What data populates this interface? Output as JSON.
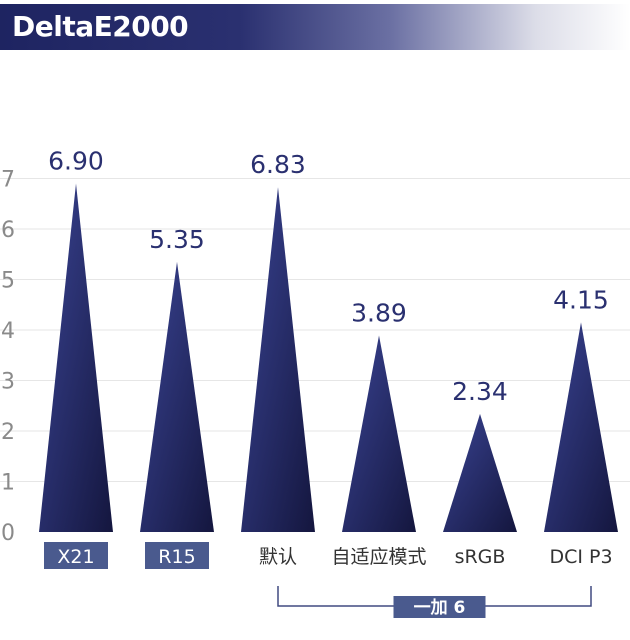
{
  "chart_data": {
    "type": "bar",
    "title": "DeltaE2000",
    "categories": [
      "X21",
      "R15",
      "默认",
      "自适应模式",
      "sRGB",
      "DCI P3"
    ],
    "values": [
      6.9,
      5.35,
      6.83,
      3.89,
      2.34,
      4.15
    ],
    "value_labels": [
      "6.90",
      "5.35",
      "6.83",
      "3.89",
      "2.34",
      "4.15"
    ],
    "highlighted_categories": [
      "X21",
      "R15"
    ],
    "group": {
      "label": "一加 6",
      "categories": [
        "默认",
        "自适应模式",
        "sRGB",
        "DCI P3"
      ]
    },
    "ylim": [
      0,
      7
    ],
    "yticks": [
      "0",
      "1",
      "2",
      "3",
      "4",
      "5",
      "6",
      "7"
    ],
    "grid": true,
    "bar_shape": "triangle",
    "colors": {
      "bar_dark": "#1a1d4d",
      "bar_light": "#3a4494",
      "label": "#2a3070",
      "highlight_box": "#4a5a8e"
    }
  }
}
